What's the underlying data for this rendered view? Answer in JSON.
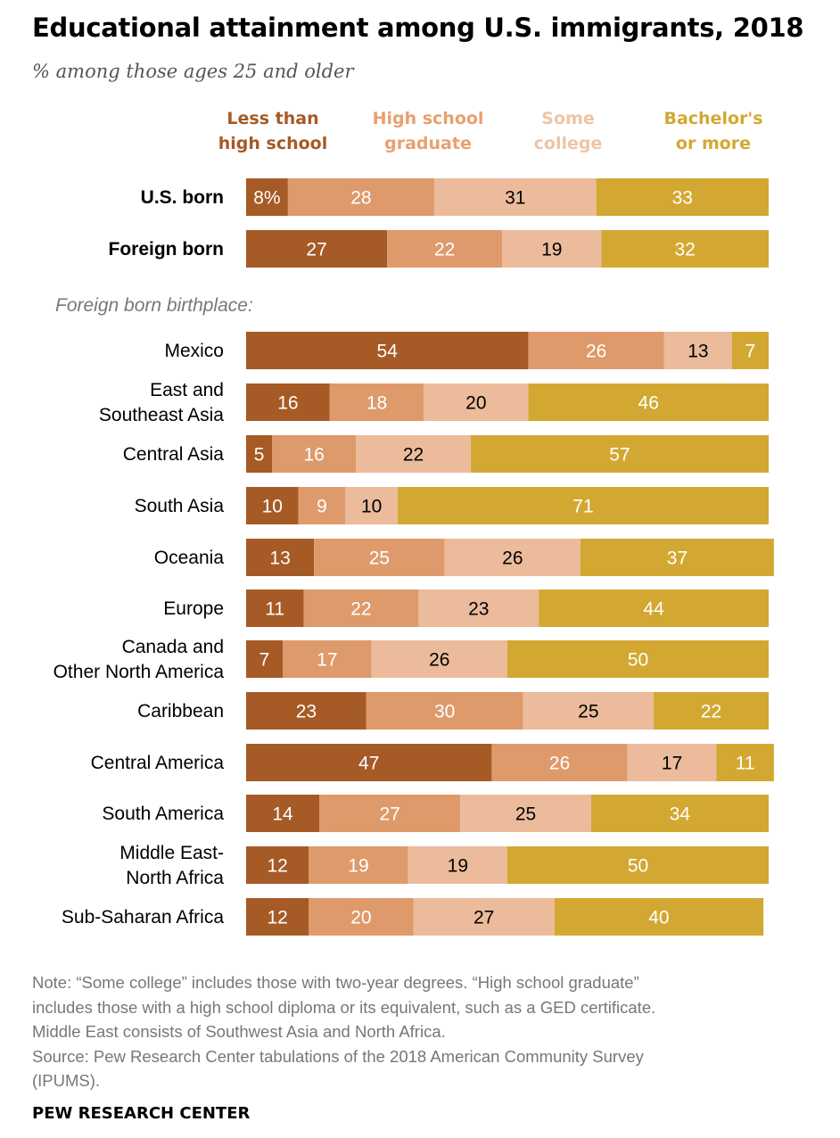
{
  "title": "Educational attainment among U.S. immigrants, 2018",
  "subtitle": "% among those ages 25 and older",
  "chart_data": {
    "type": "bar",
    "orientation": "horizontal",
    "stacked": true,
    "xlim": [
      0,
      100
    ],
    "legend_placement": "top",
    "series": [
      {
        "name": "Less than high school",
        "color": "#a65a25",
        "text_color": "#ffffff"
      },
      {
        "name": "High school graduate",
        "color": "#de9a6b",
        "text_color": "#ffffff"
      },
      {
        "name": "Some college",
        "color": "#ebbb9b",
        "text_color": "#000000"
      },
      {
        "name": "Bachelor's or more",
        "color": "#d3a832",
        "text_color": "#ffffff"
      }
    ],
    "legend": [
      {
        "lines": [
          "Less than",
          "high school"
        ],
        "color": "#a65a25"
      },
      {
        "lines": [
          "High school",
          "graduate"
        ],
        "color": "#e8a070"
      },
      {
        "lines": [
          "Some",
          "college"
        ],
        "color": "#efc4a6"
      },
      {
        "lines": [
          "Bachelor's",
          "or more"
        ],
        "color": "#d3a832"
      }
    ],
    "groups": [
      {
        "label": "",
        "rows": [
          {
            "label": [
              "U.S. born"
            ],
            "bold": true,
            "values": [
              8,
              28,
              31,
              33
            ],
            "labels": [
              "8%",
              "28",
              "31",
              "33"
            ]
          },
          {
            "label": [
              "Foreign born"
            ],
            "bold": true,
            "values": [
              27,
              22,
              19,
              32
            ],
            "labels": [
              "27",
              "22",
              "19",
              "32"
            ]
          }
        ]
      },
      {
        "label": "Foreign born birthplace:",
        "rows": [
          {
            "label": [
              "Mexico"
            ],
            "values": [
              54,
              26,
              13,
              7
            ],
            "labels": [
              "54",
              "26",
              "13",
              "7"
            ]
          },
          {
            "label": [
              "East and",
              "Southeast Asia"
            ],
            "values": [
              16,
              18,
              20,
              46
            ],
            "labels": [
              "16",
              "18",
              "20",
              "46"
            ]
          },
          {
            "label": [
              "Central Asia"
            ],
            "values": [
              5,
              16,
              22,
              57
            ],
            "labels": [
              "5",
              "16",
              "22",
              "57"
            ]
          },
          {
            "label": [
              "South Asia"
            ],
            "values": [
              10,
              9,
              10,
              71
            ],
            "labels": [
              "10",
              "9",
              "10",
              "71"
            ]
          },
          {
            "label": [
              "Oceania"
            ],
            "values": [
              13,
              25,
              26,
              37
            ],
            "labels": [
              "13",
              "25",
              "26",
              "37"
            ]
          },
          {
            "label": [
              "Europe"
            ],
            "values": [
              11,
              22,
              23,
              44
            ],
            "labels": [
              "11",
              "22",
              "23",
              "44"
            ]
          },
          {
            "label": [
              "Canada and",
              "Other North America"
            ],
            "values": [
              7,
              17,
              26,
              50
            ],
            "labels": [
              "7",
              "17",
              "26",
              "50"
            ]
          },
          {
            "label": [
              "Caribbean"
            ],
            "values": [
              23,
              30,
              25,
              22
            ],
            "labels": [
              "23",
              "30",
              "25",
              "22"
            ]
          },
          {
            "label": [
              "Central America"
            ],
            "values": [
              47,
              26,
              17,
              11
            ],
            "labels": [
              "47",
              "26",
              "17",
              "11"
            ]
          },
          {
            "label": [
              "South America"
            ],
            "values": [
              14,
              27,
              25,
              34
            ],
            "labels": [
              "14",
              "27",
              "25",
              "34"
            ]
          },
          {
            "label": [
              "Middle East-",
              "North Africa"
            ],
            "values": [
              12,
              19,
              19,
              50
            ],
            "labels": [
              "12",
              "19",
              "19",
              "50"
            ]
          },
          {
            "label": [
              "Sub-Saharan Africa"
            ],
            "values": [
              12,
              20,
              27,
              40
            ],
            "labels": [
              "12",
              "20",
              "27",
              "40"
            ]
          }
        ]
      }
    ]
  },
  "notes": [
    "Note: “Some college” includes those with two-year degrees. “High school graduate”",
    "includes those with a high school diploma or its equivalent, such as a GED certificate.",
    "Middle East consists of Southwest Asia and North Africa.",
    "Source: Pew Research Center tabulations of the 2018 American Community Survey",
    "(IPUMS)."
  ],
  "source_org": "PEW RESEARCH CENTER"
}
